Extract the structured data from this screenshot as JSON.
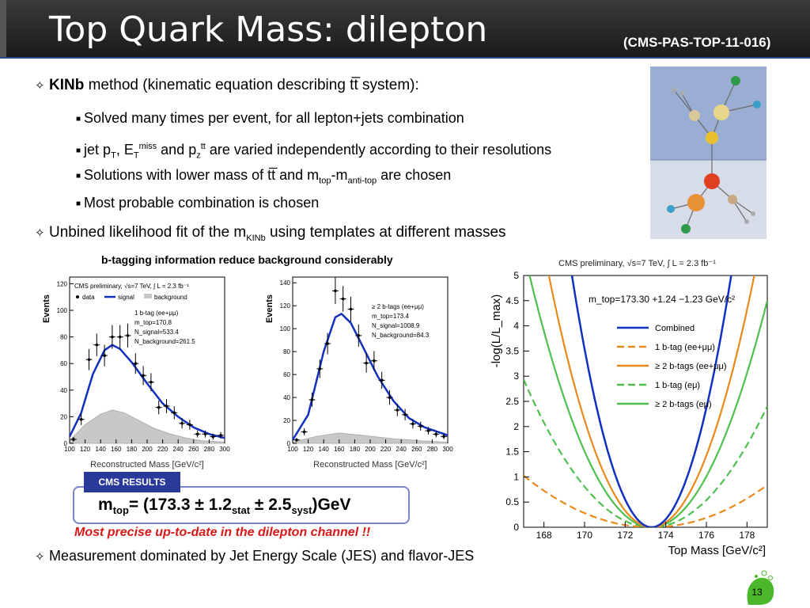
{
  "title": "Top Quark Mass: dilepton",
  "reference": "(CMS-PAS-TOP-11-016)",
  "bullets": {
    "b1_bold": "KINb",
    "b1_rest": " method (kinematic equation describing tt̅ system):",
    "s1": "Solved many times per event, for all lepton+jets combination",
    "s2_a": "jet p",
    "s2_a_sub": "T",
    "s2_b": ", E",
    "s2_b_sub": "T",
    "s2_b_sup": "miss",
    "s2_c": " and p",
    "s2_c_sub": "z",
    "s2_c_sup": "tt",
    "s2_d": " are varied independently according to their resolutions",
    "s3_a": "Solutions with lower mass of tt̅ and m",
    "s3_a_sub": "top",
    "s3_b": "-m",
    "s3_b_sub": "anti-top",
    "s3_c": "  are chosen",
    "s4": "Most probable combination is chosen",
    "b2_a": "Unbined likelihood fit of the m",
    "b2_sub": "KINb",
    "b2_b": " using templates at different masses",
    "b3": "Measurement dominated by Jet Energy Scale (JES) and flavor-JES"
  },
  "caption": "b-tagging information reduce background considerably",
  "cms_results": "CMS RESULTS",
  "result": {
    "m": "m",
    "m_sub": "top",
    "val": "= (173.3 ± 1.2",
    "stat": "stat",
    "mid": " ± 2.5",
    "syst": "syst",
    "end": ")GeV"
  },
  "precise": "Most precise up-to-date in the dilepton channel !!",
  "page_number": "13",
  "colors": {
    "signal": "#1030c0",
    "ee": "#e88a1a",
    "emu": "#4fc04f",
    "red": "#d81818",
    "badge": "#2a3a9a"
  },
  "chart_data": [
    {
      "type": "bar",
      "title": "CMS preliminary, √s=7 TeV, ∫ L = 2.3 fb⁻¹",
      "legend": [
        "data",
        "signal",
        "background"
      ],
      "info": [
        "1 b-tag (ee+μμ)",
        "m_top=170.8",
        "N_signal=533.4",
        "N_background=261.5"
      ],
      "xlabel": "Reconstructed Mass [GeV/c²]",
      "ylabel": "Events",
      "xlim": [
        100,
        300
      ],
      "ylim": [
        0,
        125
      ],
      "xticks": [
        100,
        120,
        140,
        160,
        180,
        200,
        220,
        240,
        260,
        280,
        300
      ],
      "yticks": [
        0,
        20,
        40,
        60,
        80,
        100,
        120
      ],
      "data": [
        [
          105,
          3
        ],
        [
          115,
          18
        ],
        [
          125,
          63
        ],
        [
          135,
          74
        ],
        [
          145,
          66
        ],
        [
          155,
          80
        ],
        [
          165,
          80
        ],
        [
          175,
          81
        ],
        [
          185,
          60
        ],
        [
          195,
          51
        ],
        [
          205,
          46
        ],
        [
          215,
          27
        ],
        [
          225,
          28
        ],
        [
          235,
          23
        ],
        [
          245,
          15
        ],
        [
          255,
          14
        ],
        [
          265,
          7
        ],
        [
          275,
          7
        ],
        [
          285,
          5
        ],
        [
          295,
          6
        ]
      ],
      "signal": [
        [
          100,
          5
        ],
        [
          115,
          23
        ],
        [
          130,
          52
        ],
        [
          145,
          70
        ],
        [
          155,
          74
        ],
        [
          165,
          71
        ],
        [
          180,
          61
        ],
        [
          200,
          45
        ],
        [
          220,
          30
        ],
        [
          240,
          20
        ],
        [
          260,
          12
        ],
        [
          280,
          7
        ],
        [
          300,
          4
        ]
      ],
      "background": [
        [
          100,
          2
        ],
        [
          120,
          14
        ],
        [
          140,
          22
        ],
        [
          155,
          25
        ],
        [
          170,
          23
        ],
        [
          190,
          17
        ],
        [
          210,
          11
        ],
        [
          230,
          7
        ],
        [
          250,
          4
        ],
        [
          270,
          2
        ],
        [
          300,
          1
        ]
      ]
    },
    {
      "type": "bar",
      "legend": [
        "≥ 2 b-tags (ee+μμ)"
      ],
      "info": [
        "m_top=173.4",
        "N_signal=1008.9",
        "N_background=84.3"
      ],
      "xlabel": "Reconstructed Mass [GeV/c²]",
      "ylabel": "Events",
      "xlim": [
        100,
        300
      ],
      "ylim": [
        0,
        145
      ],
      "xticks": [
        100,
        120,
        140,
        160,
        180,
        200,
        220,
        240,
        260,
        280,
        300
      ],
      "yticks": [
        0,
        20,
        40,
        60,
        80,
        100,
        120,
        140
      ],
      "data": [
        [
          105,
          3
        ],
        [
          115,
          10
        ],
        [
          125,
          38
        ],
        [
          135,
          65
        ],
        [
          145,
          87
        ],
        [
          155,
          133
        ],
        [
          165,
          126
        ],
        [
          175,
          117
        ],
        [
          185,
          94
        ],
        [
          195,
          70
        ],
        [
          205,
          72
        ],
        [
          215,
          55
        ],
        [
          225,
          40
        ],
        [
          235,
          29
        ],
        [
          245,
          25
        ],
        [
          255,
          17
        ],
        [
          265,
          15
        ],
        [
          275,
          11
        ],
        [
          285,
          8
        ],
        [
          295,
          6
        ]
      ],
      "signal": [
        [
          100,
          3
        ],
        [
          120,
          25
        ],
        [
          140,
          80
        ],
        [
          155,
          110
        ],
        [
          163,
          113
        ],
        [
          175,
          105
        ],
        [
          190,
          85
        ],
        [
          210,
          58
        ],
        [
          230,
          37
        ],
        [
          250,
          22
        ],
        [
          270,
          14
        ],
        [
          300,
          7
        ]
      ],
      "background": [
        [
          100,
          1
        ],
        [
          130,
          6
        ],
        [
          160,
          9
        ],
        [
          190,
          7
        ],
        [
          230,
          4
        ],
        [
          270,
          2
        ],
        [
          300,
          1
        ]
      ]
    },
    {
      "type": "line",
      "title": "CMS preliminary, √s=7 TeV, ∫ L = 2.3 fb⁻¹",
      "annotation": "m_top=173.30 +1.24 −1.23 GeV/c²",
      "xlabel": "Top Mass [GeV/c²]",
      "ylabel": "-log(L/L_max)",
      "xlim": [
        167,
        179
      ],
      "ylim": [
        0,
        5
      ],
      "xticks": [
        168,
        170,
        172,
        174,
        176,
        178
      ],
      "yticks": [
        0,
        0.5,
        1,
        1.5,
        2,
        2.5,
        3,
        3.5,
        4,
        4.5,
        5
      ],
      "min": 173.3,
      "series": [
        {
          "name": "Combined",
          "width": 1.24
        },
        {
          "name": "1 b-tag (ee+μμ)",
          "width": 4.4
        },
        {
          "name": "≥ 2 b-tags (ee+μμ)",
          "width": 1.6
        },
        {
          "name": "1 b-tag (eμ)",
          "width": 2.6
        },
        {
          "name": "≥ 2 b-tags (eμ)",
          "width": 1.9
        }
      ]
    }
  ]
}
